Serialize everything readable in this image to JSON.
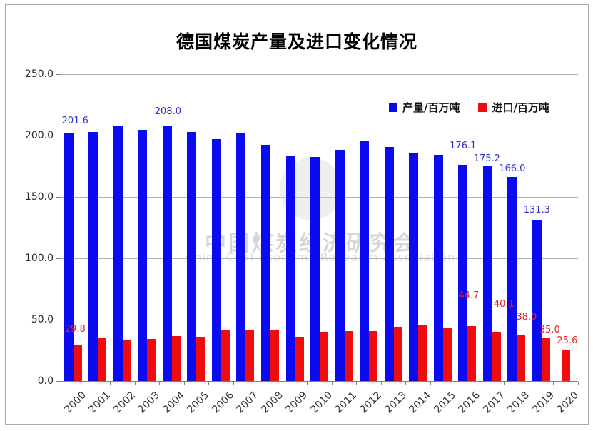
{
  "title": "德国煤炭产量及进口变化情况",
  "watermark": {
    "line1": "中国煤炭经济研究会",
    "line2": "China Coal Economy Research Association"
  },
  "colors": {
    "production_bar": "#0b0bef",
    "import_bar": "#ee0c0c",
    "production_label": "#3333cc",
    "import_label": "#f02020",
    "gridline": "#b2b2b2",
    "axis": "#7f7f7f"
  },
  "chart_data": {
    "type": "bar",
    "title": "德国煤炭产量及进口变化情况",
    "categories": [
      "2000",
      "2001",
      "2002",
      "2003",
      "2004",
      "2005",
      "2006",
      "2007",
      "2008",
      "2009",
      "2010",
      "2011",
      "2012",
      "2013",
      "2014",
      "2015",
      "2016",
      "2017",
      "2018",
      "2019",
      "2020"
    ],
    "series": [
      {
        "name": "产量/百万吨",
        "id": "production",
        "color": "#0b0bef",
        "label_color": "#3333cc",
        "values": [
          201.6,
          202.9,
          207.9,
          204.9,
          208.0,
          202.8,
          197.1,
          201.9,
          192.6,
          183.0,
          182.3,
          188.6,
          196.2,
          190.6,
          185.8,
          184.3,
          176.1,
          175.2,
          166.0,
          131.3,
          null
        ],
        "point_labels": {
          "2000": "201.6",
          "2004": "208.0",
          "2016": "176.1",
          "2017": "175.2",
          "2018": "166.0",
          "2019": "131.3"
        }
      },
      {
        "name": "进口/百万吨",
        "id": "import",
        "color": "#ee0c0c",
        "label_color": "#f02020",
        "values": [
          29.8,
          35.0,
          33.3,
          34.4,
          36.6,
          36.0,
          41.5,
          41.3,
          41.6,
          35.9,
          39.9,
          40.6,
          40.5,
          44.3,
          45.4,
          42.9,
          44.7,
          40.1,
          38.0,
          35.0,
          25.6
        ],
        "point_labels": {
          "2000": "29.8",
          "2016": "44.7",
          "2017": "40.1",
          "2018": "38.0",
          "2019": "35.0",
          "2020": "25.6"
        }
      }
    ],
    "xlabel": "",
    "ylabel": "",
    "ylim": [
      0,
      250
    ],
    "ytick_step": 50,
    "yticks": [
      "250.0",
      "200.0",
      "150.0",
      "100.0",
      "50.0",
      "0.0"
    ],
    "grid": true,
    "legend_position": "top-right-inside"
  }
}
